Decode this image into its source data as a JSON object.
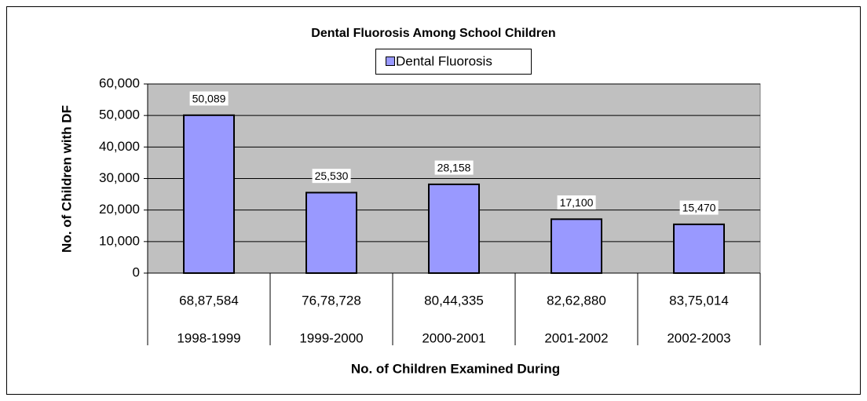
{
  "chart_data": {
    "type": "bar",
    "title": "Dental Fluorosis Among School Children",
    "y_axis_label": "No. of Children with DF",
    "x_axis_label": "No. of Children Examined During",
    "categories": [
      "1998-1999",
      "1999-2000",
      "2000-2001",
      "2001-2002",
      "2002-2003"
    ],
    "examined": [
      "68,87,584",
      "76,78,728",
      "80,44,335",
      "82,62,880",
      "83,75,014"
    ],
    "series": [
      {
        "name": "Dental Fluorosis",
        "color": "#9999ff",
        "values": [
          50089,
          25530,
          28158,
          17100,
          15470
        ],
        "value_labels": [
          "50,089",
          "25,530",
          "28,158",
          "17,100",
          "15,470"
        ]
      }
    ],
    "ylim": [
      0,
      60000
    ],
    "yticks": [
      0,
      {
        "value": 10000,
        "label": "10,000"
      },
      {
        "value": 20000,
        "label": "20,000"
      },
      {
        "value": 30000,
        "label": "30,000"
      },
      {
        "value": 40000,
        "label": "40,000"
      },
      {
        "value": 50000,
        "label": "50,000"
      },
      {
        "value": 60000,
        "label": "60,000"
      }
    ],
    "grid": true
  }
}
